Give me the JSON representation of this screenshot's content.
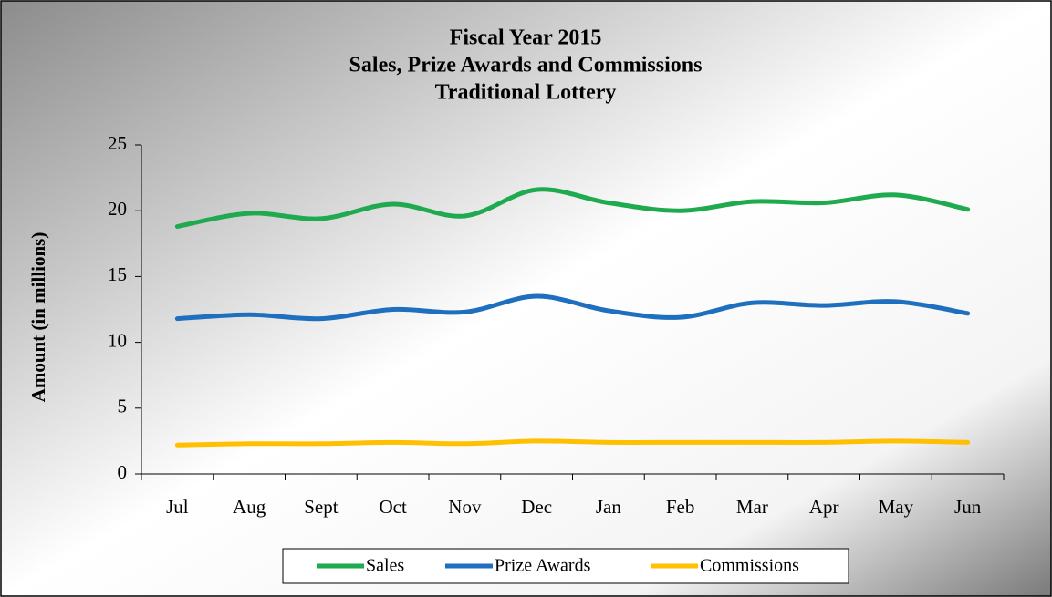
{
  "chart_data": {
    "type": "line",
    "title": [
      "Fiscal Year 2015",
      "Sales, Prize Awards and Commissions",
      "Traditional Lottery"
    ],
    "y_label": "Amount  (in millions)",
    "categories": [
      "Jul",
      "Aug",
      "Sept",
      "Oct",
      "Nov",
      "Dec",
      "Jan",
      "Feb",
      "Mar",
      "Apr",
      "May",
      "Jun"
    ],
    "series": [
      {
        "name": "Sales",
        "color": "#1faa4f",
        "values": [
          18.8,
          19.8,
          19.4,
          20.5,
          19.6,
          21.6,
          20.6,
          20.0,
          20.7,
          20.6,
          21.2,
          20.1
        ]
      },
      {
        "name": "Prize Awards",
        "color": "#1f6fbf",
        "values": [
          11.8,
          12.1,
          11.8,
          12.5,
          12.3,
          13.5,
          12.4,
          11.9,
          13.0,
          12.8,
          13.1,
          12.2
        ]
      },
      {
        "name": "Commissions",
        "color": "#ffc000",
        "values": [
          2.2,
          2.3,
          2.3,
          2.4,
          2.3,
          2.5,
          2.4,
          2.4,
          2.4,
          2.4,
          2.5,
          2.4
        ]
      }
    ],
    "ylim": [
      0,
      25
    ],
    "yticks": [
      0,
      5,
      10,
      15,
      20,
      25
    ],
    "smooth": true,
    "legend": "bottom"
  }
}
